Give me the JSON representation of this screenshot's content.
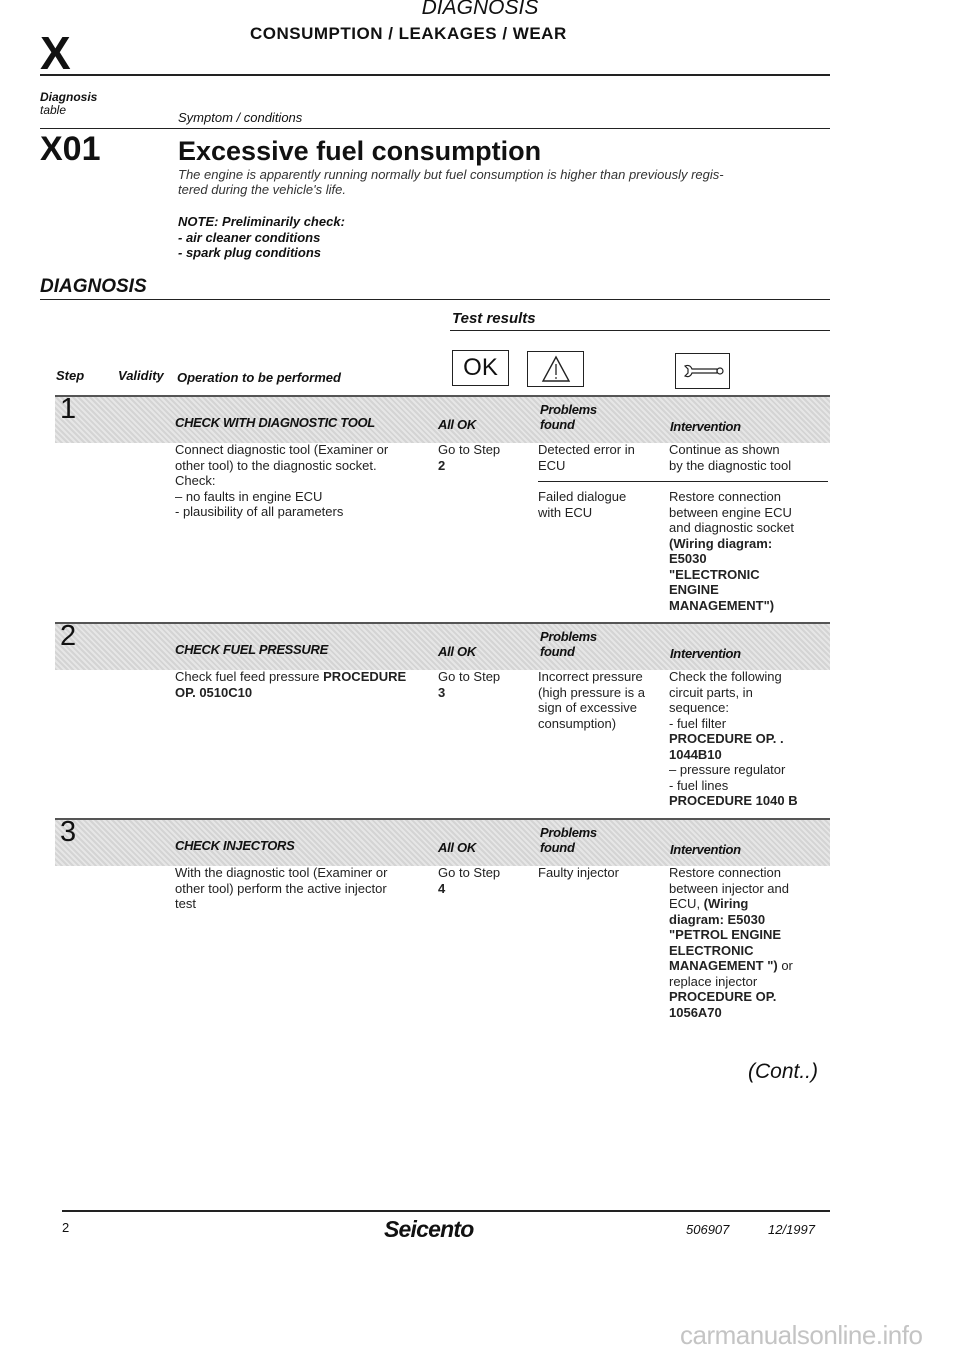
{
  "header": {
    "section": "DIAGNOSIS",
    "subtitle": "CONSUMPTION / LEAKAGES / WEAR",
    "letter": "X"
  },
  "table_header": {
    "diagnosis_table_line1": "Diagnosis",
    "diagnosis_table_line2": "table",
    "symptom_label": "Symptom / conditions"
  },
  "symptom": {
    "code": "X01",
    "title": "Excessive fuel consumption",
    "description_line1": "The engine is apparently running normally but fuel consumption is higher than previously regis-",
    "description_line2": "tered during the vehicle's life.",
    "note_title": "NOTE: Preliminarily check:",
    "note_items": [
      "- air cleaner conditions",
      "- spark plug conditions"
    ]
  },
  "diagnosis": {
    "heading": "DIAGNOSIS",
    "test_results": "Test results",
    "col_step": "Step",
    "col_validity": "Validity",
    "col_operation": "Operation to be performed",
    "icons": {
      "ok_text": "OK",
      "ok": "ok-icon",
      "warning": "warning-triangle-icon",
      "intervention": "wrench-icon"
    }
  },
  "steps": [
    {
      "number": "1",
      "title": "CHECK WITH DIAGNOSTIC TOOL",
      "all_ok": "All OK",
      "problems_found": [
        "Problems",
        "found"
      ],
      "intervention_label": "Intervention",
      "operation": [
        [
          {
            "text": "Connect diagnostic tool (Examiner or",
            "bold": false
          }
        ],
        [
          {
            "text": "other tool) to the diagnostic socket.",
            "bold": false
          }
        ],
        [
          {
            "text": "Check:",
            "bold": false
          }
        ],
        [
          {
            "text": "– no faults in engine ECU",
            "bold": false
          }
        ],
        [
          {
            "text": "- plausibility of all parameters",
            "bold": false
          }
        ]
      ],
      "ok_result": [
        [
          {
            "text": "Go to Step",
            "bold": false
          }
        ],
        [
          {
            "text": "2",
            "bold": true
          }
        ]
      ],
      "problems": [
        {
          "problem": [
            [
              {
                "text": "Detected error in",
                "bold": false
              }
            ],
            [
              {
                "text": "ECU",
                "bold": false
              }
            ]
          ],
          "intervention": [
            [
              {
                "text": "Continue as shown",
                "bold": false
              }
            ],
            [
              {
                "text": "by the diagnostic tool",
                "bold": false
              }
            ]
          ]
        },
        {
          "problem": [
            [
              {
                "text": "Failed dialogue",
                "bold": false
              }
            ],
            [
              {
                "text": "with ECU",
                "bold": false
              }
            ]
          ],
          "intervention": [
            [
              {
                "text": "Restore connection",
                "bold": false
              }
            ],
            [
              {
                "text": "between engine ECU",
                "bold": false
              }
            ],
            [
              {
                "text": "and diagnostic socket",
                "bold": false
              }
            ],
            [
              {
                "text": "(Wiring diagram:",
                "bold": true
              }
            ],
            [
              {
                "text": "E5030",
                "bold": true
              }
            ],
            [
              {
                "text": "\"ELECTRONIC",
                "bold": true
              }
            ],
            [
              {
                "text": "ENGINE",
                "bold": true
              }
            ],
            [
              {
                "text": "MANAGEMENT\")",
                "bold": true
              }
            ]
          ]
        }
      ]
    },
    {
      "number": "2",
      "title": "CHECK FUEL PRESSURE",
      "all_ok": "All OK",
      "problems_found": [
        "Problems",
        "found"
      ],
      "intervention_label": "Intervention",
      "operation": [
        [
          {
            "text": "Check fuel feed pressure ",
            "bold": false
          },
          {
            "text": "PROCEDURE",
            "bold": true
          }
        ],
        [
          {
            "text": "OP. 0510C10",
            "bold": true
          }
        ]
      ],
      "ok_result": [
        [
          {
            "text": "Go to Step",
            "bold": false
          }
        ],
        [
          {
            "text": "3",
            "bold": true
          }
        ]
      ],
      "problems": [
        {
          "problem": [
            [
              {
                "text": "Incorrect pressure",
                "bold": false
              }
            ],
            [
              {
                "text": "(high pressure is a",
                "bold": false
              }
            ],
            [
              {
                "text": "sign of excessive",
                "bold": false
              }
            ],
            [
              {
                "text": "consumption)",
                "bold": false
              }
            ]
          ],
          "intervention": [
            [
              {
                "text": "Check the following",
                "bold": false
              }
            ],
            [
              {
                "text": "circuit parts, in",
                "bold": false
              }
            ],
            [
              {
                "text": "sequence:",
                "bold": false
              }
            ],
            [
              {
                "text": "- fuel filter",
                "bold": false
              }
            ],
            [
              {
                "text": "PROCEDURE OP. .",
                "bold": true
              }
            ],
            [
              {
                "text": "1044B10",
                "bold": true
              }
            ],
            [
              {
                "text": "– pressure regulator",
                "bold": false
              }
            ],
            [
              {
                "text": "- fuel lines",
                "bold": false
              }
            ],
            [
              {
                "text": "PROCEDURE 1040 B",
                "bold": true
              }
            ]
          ]
        }
      ]
    },
    {
      "number": "3",
      "title": "CHECK INJECTORS",
      "all_ok": "All OK",
      "problems_found": [
        "Problems",
        "found"
      ],
      "intervention_label": "Intervention",
      "operation": [
        [
          {
            "text": "With the diagnostic tool (Examiner or",
            "bold": false
          }
        ],
        [
          {
            "text": "other tool) perform the active injector",
            "bold": false
          }
        ],
        [
          {
            "text": "test",
            "bold": false
          }
        ]
      ],
      "ok_result": [
        [
          {
            "text": "Go to Step",
            "bold": false
          }
        ],
        [
          {
            "text": "4",
            "bold": true
          }
        ]
      ],
      "problems": [
        {
          "problem": [
            [
              {
                "text": "Faulty injector",
                "bold": false
              }
            ]
          ],
          "intervention": [
            [
              {
                "text": "Restore connection",
                "bold": false
              }
            ],
            [
              {
                "text": "between injector and",
                "bold": false
              }
            ],
            [
              {
                "text": "ECU, ",
                "bold": false
              },
              {
                "text": "(Wiring",
                "bold": true
              }
            ],
            [
              {
                "text": "diagram: E5030",
                "bold": true
              }
            ],
            [
              {
                "text": "\"PETROL ENGINE",
                "bold": true
              }
            ],
            [
              {
                "text": "ELECTRONIC",
                "bold": true
              }
            ],
            [
              {
                "text": "MANAGEMENT \")",
                "bold": true
              },
              {
                "text": " or",
                "bold": false
              }
            ],
            [
              {
                "text": "replace injector",
                "bold": false
              }
            ],
            [
              {
                "text": "PROCEDURE OP.",
                "bold": true
              }
            ],
            [
              {
                "text": "1056A70",
                "bold": true
              }
            ]
          ]
        }
      ]
    }
  ],
  "continued": "(Cont..)",
  "footer": {
    "page_number": "2",
    "brand": "Seicento",
    "doc_code": "506907",
    "date": "12/1997"
  },
  "watermark": "carmanualsonline.info"
}
